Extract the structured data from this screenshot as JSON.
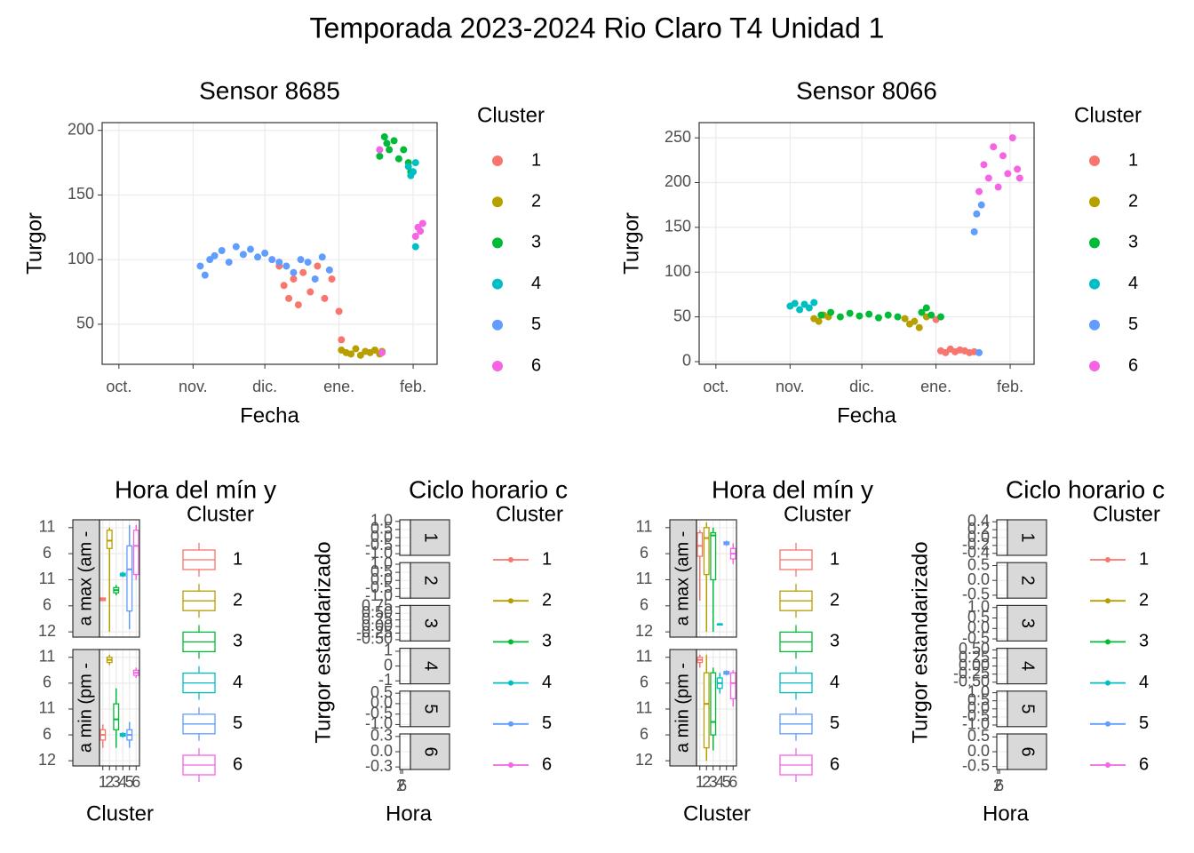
{
  "title": "Temporada 2023-2024 Rio Claro T4 Unidad 1",
  "chart_data": [
    {
      "type": "scatter",
      "title": "Sensor 8685",
      "xlabel": "Fecha",
      "ylabel": "Turgor",
      "legend_title": "Cluster",
      "grid": true,
      "xlim": [
        -7,
        133
      ],
      "xticks": [
        {
          "value": 0,
          "label": "oct."
        },
        {
          "value": 31,
          "label": "nov."
        },
        {
          "value": 61,
          "label": "dic."
        },
        {
          "value": 92,
          "label": "ene."
        },
        {
          "value": 123,
          "label": "feb."
        }
      ],
      "ylim": [
        19,
        206
      ],
      "yticks": [
        50,
        100,
        150,
        200
      ],
      "series": [
        {
          "name": "1",
          "color": "#F8766D",
          "x": [
            67,
            69,
            71,
            73,
            75,
            77,
            80,
            83,
            86,
            89,
            92,
            93
          ],
          "values": [
            95,
            80,
            70,
            85,
            65,
            90,
            75,
            95,
            70,
            85,
            60,
            38
          ]
        },
        {
          "name": "2",
          "color": "#B79F00",
          "x": [
            93,
            95,
            97,
            99,
            101,
            103,
            105,
            107,
            109,
            110
          ],
          "values": [
            30,
            28,
            27,
            31,
            26,
            29,
            28,
            30,
            27,
            29
          ]
        },
        {
          "name": "3",
          "color": "#00BA38",
          "x": [
            109,
            111,
            112,
            113,
            115,
            117,
            119,
            121,
            122
          ],
          "values": [
            180,
            195,
            190,
            185,
            192,
            178,
            185,
            175,
            168
          ]
        },
        {
          "name": "4",
          "color": "#00BFC4",
          "x": [
            121,
            122,
            123,
            124,
            124
          ],
          "values": [
            172,
            165,
            168,
            175,
            110
          ]
        },
        {
          "name": "5",
          "color": "#619CFF",
          "x": [
            34,
            36,
            38,
            40,
            43,
            46,
            49,
            52,
            55,
            58,
            61,
            64,
            67,
            70,
            73,
            76,
            79,
            82,
            85,
            88
          ],
          "values": [
            95,
            88,
            100,
            103,
            107,
            98,
            110,
            104,
            108,
            102,
            105,
            100,
            98,
            95,
            90,
            100,
            98,
            85,
            102,
            92
          ]
        },
        {
          "name": "6",
          "color": "#F564E3",
          "x": [
            109,
            110,
            124,
            125,
            126,
            127
          ],
          "values": [
            185,
            28,
            118,
            125,
            122,
            128
          ]
        }
      ]
    },
    {
      "type": "boxplot",
      "title": "Hora del mín y",
      "xlabel": "Cluster",
      "legend_title": "Cluster",
      "grid": true,
      "categories": [
        "1",
        "2",
        "3",
        "4",
        "5",
        "6"
      ],
      "colors": [
        "#F8766D",
        "#B79F00",
        "#00BA38",
        "#00BFC4",
        "#619CFF",
        "#F564E3"
      ],
      "ylim": [
        -0.2,
        4.3
      ],
      "yticks": [
        {
          "value": 4,
          "label": "11"
        },
        {
          "value": 3,
          "label": "6"
        },
        {
          "value": 2,
          "label": "11"
        },
        {
          "value": 1,
          "label": "6"
        },
        {
          "value": 0,
          "label": "12"
        }
      ],
      "facets": [
        {
          "strip": "a max (am -",
          "boxes": [
            [
              1.2,
              1.2,
              1.25,
              1.3,
              1.3
            ],
            [
              0,
              3.2,
              3.5,
              3.9,
              4.0
            ],
            [
              1.4,
              1.5,
              1.6,
              1.7,
              1.8
            ],
            [
              2.1,
              2.15,
              2.2,
              2.25,
              2.3
            ],
            [
              0.1,
              0.8,
              2.4,
              3.3,
              4.1
            ],
            [
              2.0,
              2.2,
              3.3,
              3.9,
              4.1
            ]
          ]
        },
        {
          "strip": "a min (pm -",
          "boxes": [
            [
              0.5,
              0.8,
              1.0,
              1.2,
              1.4
            ],
            [
              3.7,
              3.8,
              3.9,
              4.0,
              4.1
            ],
            [
              0.5,
              1.2,
              1.6,
              2.2,
              2.8
            ],
            [
              0.9,
              0.95,
              1.0,
              1.05,
              1.1
            ],
            [
              0.5,
              0.8,
              1.0,
              1.2,
              1.5
            ],
            [
              3.2,
              3.3,
              3.4,
              3.5,
              3.6
            ]
          ]
        }
      ]
    },
    {
      "type": "line",
      "title": "Ciclo horario c",
      "xlabel": "Hora",
      "ylabel": "Turgor estandarizado",
      "legend_title": "Cluster",
      "xlim": [
        0,
        23
      ],
      "xticks": [
        2,
        6
      ],
      "facets": [
        {
          "strip": "1",
          "ylim": [
            -1.1,
            1.1
          ],
          "yticks": [
            {
              "value": -1,
              "label": "-1.0"
            },
            -0.5,
            {
              "value": 0,
              "label": "0.0"
            },
            0.5,
            {
              "value": 1,
              "label": "1.0"
            }
          ]
        },
        {
          "strip": "2",
          "ylim": [
            -1.1,
            1.1
          ],
          "yticks": [
            {
              "value": -1,
              "label": "-1.0"
            },
            -0.5,
            {
              "value": 0,
              "label": "0.0"
            },
            0.5,
            {
              "value": 1,
              "label": "1.0"
            }
          ]
        },
        {
          "strip": "3",
          "ylim": [
            -0.55,
            0.8
          ],
          "yticks": [
            {
              "value": -0.5,
              "label": "-0.50"
            },
            -0.25,
            {
              "value": 0,
              "label": "0.00"
            },
            0.25,
            {
              "value": 0.5,
              "label": "0.50"
            },
            0.75
          ]
        },
        {
          "strip": "4",
          "ylim": [
            -1.2,
            1.2
          ],
          "yticks": [
            -1,
            0,
            1
          ]
        },
        {
          "strip": "5",
          "ylim": [
            -1.1,
            0.6
          ],
          "yticks": [
            {
              "value": -1,
              "label": "-1.0"
            },
            -0.5,
            {
              "value": 0,
              "label": "0.0"
            },
            0.5
          ]
        },
        {
          "strip": "6",
          "ylim": [
            -0.35,
            0.35
          ],
          "yticks": [
            -0.3,
            {
              "value": 0,
              "label": "0.0"
            },
            0.3
          ]
        }
      ],
      "series": [
        {
          "name": "1",
          "color": "#F8766D"
        },
        {
          "name": "2",
          "color": "#B79F00"
        },
        {
          "name": "3",
          "color": "#00BA38"
        },
        {
          "name": "4",
          "color": "#00BFC4"
        },
        {
          "name": "5",
          "color": "#619CFF"
        },
        {
          "name": "6",
          "color": "#F564E3"
        }
      ]
    },
    {
      "type": "scatter",
      "title": "Sensor 8066",
      "xlabel": "Fecha",
      "ylabel": "Turgor",
      "legend_title": "Cluster",
      "grid": true,
      "xlim": [
        -7,
        133
      ],
      "xticks": [
        {
          "value": 0,
          "label": "oct."
        },
        {
          "value": 31,
          "label": "nov."
        },
        {
          "value": 61,
          "label": "dic."
        },
        {
          "value": 92,
          "label": "ene."
        },
        {
          "value": 123,
          "label": "feb."
        }
      ],
      "ylim": [
        -3,
        267
      ],
      "yticks": [
        0,
        50,
        100,
        150,
        200,
        250
      ],
      "series": [
        {
          "name": "1",
          "color": "#F8766D",
          "x": [
            92,
            94,
            96,
            98,
            100,
            102,
            104,
            106,
            108
          ],
          "values": [
            47,
            12,
            10,
            14,
            11,
            13,
            12,
            10,
            11
          ]
        },
        {
          "name": "2",
          "color": "#B79F00",
          "x": [
            41,
            43,
            45,
            47,
            79,
            81,
            83,
            85,
            88
          ],
          "values": [
            48,
            45,
            52,
            50,
            48,
            42,
            45,
            38,
            50
          ]
        },
        {
          "name": "3",
          "color": "#00BA38",
          "x": [
            44,
            48,
            52,
            56,
            60,
            64,
            68,
            72,
            76,
            86,
            88,
            90,
            94
          ],
          "values": [
            52,
            55,
            50,
            54,
            51,
            53,
            49,
            52,
            50,
            55,
            60,
            52,
            50
          ]
        },
        {
          "name": "4",
          "color": "#00BFC4",
          "x": [
            31,
            33,
            35,
            37,
            39,
            41
          ],
          "values": [
            62,
            65,
            58,
            64,
            60,
            66
          ]
        },
        {
          "name": "5",
          "color": "#619CFF",
          "x": [
            108,
            109,
            110,
            111
          ],
          "values": [
            145,
            165,
            10,
            175
          ]
        },
        {
          "name": "6",
          "color": "#F564E3",
          "x": [
            110,
            112,
            114,
            116,
            118,
            120,
            122,
            124,
            126,
            127
          ],
          "values": [
            190,
            220,
            205,
            240,
            195,
            230,
            210,
            250,
            215,
            205
          ]
        }
      ]
    },
    {
      "type": "boxplot",
      "title": "Hora del mín y",
      "xlabel": "Cluster",
      "legend_title": "Cluster",
      "grid": true,
      "categories": [
        "1",
        "2",
        "3",
        "4",
        "5",
        "6"
      ],
      "colors": [
        "#F8766D",
        "#B79F00",
        "#00BA38",
        "#00BFC4",
        "#619CFF",
        "#F564E3"
      ],
      "ylim": [
        -0.2,
        4.3
      ],
      "yticks": [
        {
          "value": 4,
          "label": "11"
        },
        {
          "value": 3,
          "label": "6"
        },
        {
          "value": 2,
          "label": "11"
        },
        {
          "value": 1,
          "label": "6"
        },
        {
          "value": 0,
          "label": "12"
        }
      ],
      "facets": [
        {
          "strip": "a max (am -",
          "boxes": [
            [
              1.2,
              2.9,
              3.3,
              3.8,
              3.9
            ],
            [
              0,
              2.2,
              3.6,
              4.0,
              4.2
            ],
            [
              0,
              2.0,
              3.7,
              3.8,
              4.0
            ],
            [
              0.3,
              0.3,
              0.3,
              0.3,
              0.3
            ],
            [
              3.3,
              3.35,
              3.4,
              3.45,
              3.5
            ],
            [
              2.6,
              2.8,
              3.0,
              3.2,
              3.4
            ]
          ]
        },
        {
          "strip": "a min (pm -",
          "boxes": [
            [
              3.6,
              3.8,
              3.9,
              4.0,
              4.1
            ],
            [
              0,
              0.5,
              2.2,
              3.4,
              4.1
            ],
            [
              0.4,
              1.0,
              1.5,
              3.4,
              3.6
            ],
            [
              2.6,
              2.8,
              3.0,
              3.2,
              3.4
            ],
            [
              3.3,
              3.35,
              3.4,
              3.45,
              3.5
            ],
            [
              2.1,
              2.4,
              3.0,
              3.4,
              3.5
            ]
          ]
        }
      ]
    },
    {
      "type": "line",
      "title": "Ciclo horario c",
      "xlabel": "Hora",
      "ylabel": "Turgor estandarizado",
      "legend_title": "Cluster",
      "xlim": [
        0,
        23
      ],
      "xticks": [
        2,
        6
      ],
      "facets": [
        {
          "strip": "1",
          "ylim": [
            -0.45,
            0.45
          ],
          "yticks": [
            -0.4,
            -0.2,
            {
              "value": 0,
              "label": "0.0"
            },
            0.2,
            0.4
          ]
        },
        {
          "strip": "2",
          "ylim": [
            -0.6,
            0.6
          ],
          "yticks": [
            -0.5,
            {
              "value": 0,
              "label": "0.0"
            },
            0.5
          ]
        },
        {
          "strip": "3",
          "ylim": [
            -0.6,
            1.1
          ],
          "yticks": [
            -0.5,
            {
              "value": 0,
              "label": "0.0"
            },
            0.5,
            {
              "value": 1,
              "label": "1.0"
            }
          ]
        },
        {
          "strip": "4",
          "ylim": [
            -0.55,
            0.55
          ],
          "yticks": [
            {
              "value": -0.5,
              "label": "-0.50"
            },
            -0.25,
            {
              "value": 0,
              "label": "0.00"
            },
            0.25,
            {
              "value": 0.5,
              "label": "0.50"
            }
          ]
        },
        {
          "strip": "5",
          "ylim": [
            -1.1,
            1.1
          ],
          "yticks": [
            {
              "value": -1,
              "label": "-1.0"
            },
            -0.5,
            {
              "value": 0,
              "label": "0.0"
            },
            0.5,
            {
              "value": 1,
              "label": "1.0"
            }
          ]
        },
        {
          "strip": "6",
          "ylim": [
            -0.6,
            0.6
          ],
          "yticks": [
            -0.5,
            {
              "value": 0,
              "label": "0.0"
            },
            0.5
          ]
        }
      ],
      "series": [
        {
          "name": "1",
          "color": "#F8766D"
        },
        {
          "name": "2",
          "color": "#B79F00"
        },
        {
          "name": "3",
          "color": "#00BA38"
        },
        {
          "name": "4",
          "color": "#00BFC4"
        },
        {
          "name": "5",
          "color": "#619CFF"
        },
        {
          "name": "6",
          "color": "#F564E3"
        }
      ]
    }
  ]
}
